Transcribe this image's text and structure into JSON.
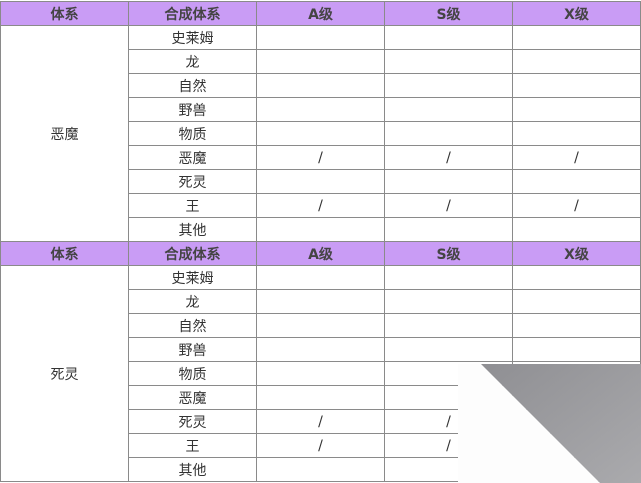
{
  "headers": [
    "体系",
    "合成体系",
    "A级",
    "S级",
    "X级"
  ],
  "blocks": [
    {
      "system": "恶魔",
      "rows": [
        [
          "史莱姆",
          "",
          "",
          ""
        ],
        [
          "龙",
          "",
          "",
          ""
        ],
        [
          "自然",
          "",
          "",
          ""
        ],
        [
          "野兽",
          "",
          "",
          ""
        ],
        [
          "物质",
          "",
          "",
          ""
        ],
        [
          "恶魔",
          "/",
          "/",
          "/"
        ],
        [
          "死灵",
          "",
          "",
          ""
        ],
        [
          "王",
          "/",
          "/",
          "/"
        ],
        [
          "其他",
          "",
          "",
          ""
        ]
      ]
    },
    {
      "system": "死灵",
      "rows": [
        [
          "史莱姆",
          "",
          "",
          ""
        ],
        [
          "龙",
          "",
          "",
          ""
        ],
        [
          "自然",
          "",
          "",
          ""
        ],
        [
          "野兽",
          "",
          "",
          ""
        ],
        [
          "物质",
          "",
          "",
          ""
        ],
        [
          "恶魔",
          "",
          "",
          ""
        ],
        [
          "死灵",
          "/",
          "/",
          ""
        ],
        [
          "王",
          "/",
          "/",
          ""
        ],
        [
          "其他",
          "",
          "",
          ""
        ]
      ]
    }
  ],
  "colors": {
    "header_bg": "#c99cf5",
    "border": "#8a8a8a",
    "page_curl": "#9e9ea2"
  }
}
